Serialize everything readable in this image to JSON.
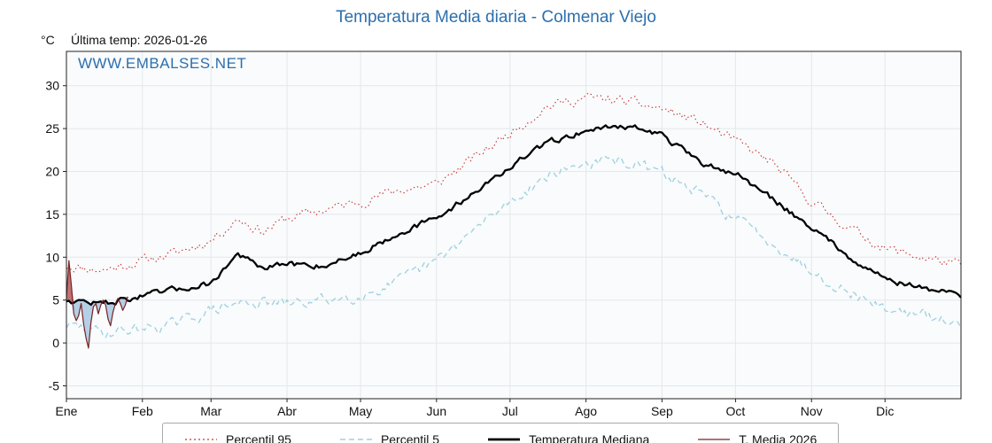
{
  "title": "Temperatura Media diaria - Colmenar Viejo",
  "header": {
    "units": "°C",
    "last_temp": "Última temp: 2026-01-26"
  },
  "watermark": "WWW.EMBALSES.NET",
  "colors": {
    "title_blue": "#2c6fad",
    "percentil95_red": "#cc3333",
    "percentil5_blue": "#9fd0e0",
    "median_black": "#000000",
    "media2026_maroon": "#7a2222",
    "below_median_fill": "#a9c7e3",
    "above_median_fill": "#b05050"
  },
  "chart_data": {
    "type": "line",
    "title": "Temperatura Media diaria - Colmenar Viejo",
    "xlabel": "",
    "ylabel": "°C",
    "grid": true,
    "legend_position": "bottom",
    "x_tick_labels": [
      "Ene",
      "Feb",
      "Mar",
      "Abr",
      "May",
      "Jun",
      "Jul",
      "Ago",
      "Sep",
      "Oct",
      "Nov",
      "Dic"
    ],
    "month_start_days": [
      0,
      31,
      59,
      90,
      120,
      151,
      181,
      212,
      243,
      273,
      304,
      334
    ],
    "y_ticks": [
      -5,
      0,
      5,
      10,
      15,
      20,
      25,
      30
    ],
    "ylim": [
      -6.5,
      34
    ],
    "xlim_days": [
      0,
      365
    ],
    "legend": [
      {
        "label": "Percentil 95",
        "color": "#cc3333",
        "style": "dotted"
      },
      {
        "label": "Percentil 5",
        "color": "#9fd0e0",
        "style": "dashed"
      },
      {
        "label": "Temperatura Mediana",
        "color": "#000000",
        "style": "solid-thick"
      },
      {
        "label": "T. Media 2026",
        "color": "#7a2222",
        "style": "solid-thin"
      }
    ],
    "series": [
      {
        "name": "Percentil 95",
        "color": "#cc3333",
        "style": "dotted",
        "width": 1.1,
        "seed": 11,
        "noise_amp": 1.0,
        "control_days": [
          0,
          15,
          45,
          59,
          70,
          80,
          90,
          105,
          120,
          135,
          151,
          166,
          181,
          196,
          212,
          227,
          243,
          258,
          273,
          288,
          304,
          319,
          334,
          349,
          365
        ],
        "control_values": [
          9.0,
          8.5,
          10.5,
          12.0,
          14.5,
          13.0,
          14.5,
          15.5,
          16.5,
          17.8,
          18.5,
          21.5,
          24.5,
          27.6,
          28.6,
          28.2,
          27.3,
          25.8,
          23.5,
          21.0,
          16.5,
          13.5,
          11.0,
          10.0,
          9.0
        ]
      },
      {
        "name": "Percentil 5",
        "color": "#9fd0e0",
        "style": "dashed",
        "width": 1.3,
        "seed": 29,
        "noise_amp": 1.15,
        "control_days": [
          0,
          15,
          45,
          59,
          74,
          90,
          105,
          120,
          135,
          151,
          166,
          181,
          196,
          212,
          227,
          243,
          258,
          273,
          288,
          304,
          319,
          334,
          349,
          365
        ],
        "control_values": [
          2.0,
          1.2,
          2.2,
          3.8,
          4.8,
          4.5,
          5.0,
          5.6,
          7.0,
          9.5,
          13.0,
          16.5,
          19.5,
          21.0,
          21.2,
          19.8,
          17.5,
          14.5,
          11.8,
          8.5,
          6.0,
          4.0,
          3.2,
          2.0
        ]
      },
      {
        "name": "Temperatura Mediana",
        "color": "#000000",
        "style": "solid",
        "width": 2.3,
        "seed": 47,
        "noise_amp": 0.6,
        "control_days": [
          0,
          15,
          45,
          59,
          70,
          80,
          90,
          105,
          120,
          135,
          151,
          166,
          181,
          196,
          212,
          227,
          243,
          258,
          273,
          288,
          304,
          319,
          334,
          349,
          365
        ],
        "control_values": [
          5.0,
          4.6,
          6.2,
          7.0,
          10.4,
          8.6,
          9.2,
          9.0,
          10.5,
          12.8,
          14.5,
          17.5,
          20.5,
          23.3,
          24.8,
          25.4,
          24.3,
          21.0,
          19.8,
          16.8,
          13.5,
          10.2,
          7.5,
          6.4,
          5.6
        ]
      },
      {
        "name": "T. Media 2026",
        "color": "#7a2222",
        "style": "solid",
        "width": 1.2,
        "daily_values": [
          5.2,
          9.6,
          6.8,
          3.4,
          2.6,
          3.2,
          4.6,
          2.2,
          0.6,
          -0.6,
          2.4,
          4.2,
          4.6,
          3.4,
          4.4,
          5.0,
          4.4,
          2.8,
          2.0,
          3.6,
          4.6,
          5.2,
          4.6,
          3.8,
          4.4,
          5.4
        ]
      }
    ]
  }
}
